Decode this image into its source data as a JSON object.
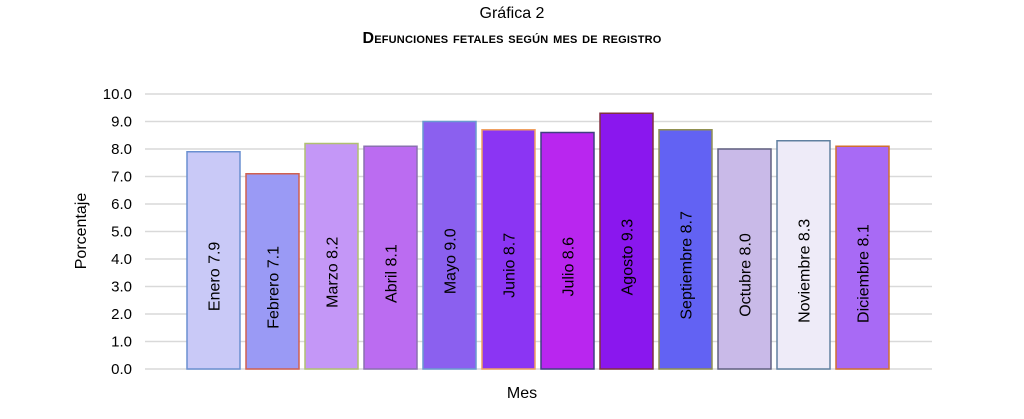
{
  "chart_data": {
    "type": "bar",
    "title": "Gráfica 2",
    "subtitle": "Defunciones fetales según mes de registro",
    "xlabel": "Mes",
    "ylabel": "Porcentaje",
    "ylim": [
      0,
      10
    ],
    "yticks": [
      "0.0",
      "1.0",
      "2.0",
      "3.0",
      "4.0",
      "5.0",
      "6.0",
      "7.0",
      "8.0",
      "9.0",
      "10.0"
    ],
    "grid": true,
    "categories": [
      "Enero",
      "Febrero",
      "Marzo",
      "Abril",
      "Mayo",
      "Junio",
      "Julio",
      "Agosto",
      "Septiembre",
      "Octubre",
      "Noviembre",
      "Diciembre"
    ],
    "values": [
      7.9,
      7.1,
      8.2,
      8.1,
      9.0,
      8.7,
      8.6,
      9.3,
      8.7,
      8.0,
      8.3,
      8.1
    ],
    "bar_labels": [
      "Enero 7.9",
      "Febrero 7.1",
      "Marzo 8.2",
      "Abril 8.1",
      "Mayo 9.0",
      "Junio 8.7",
      "Julio 8.6",
      "Agosto 9.3",
      "Septiembre 8.7",
      "Octubre 8.0",
      "Noviembre 8.3",
      "Diciembre 8.1"
    ],
    "colors": [
      "#c9c9f7",
      "#9a9af5",
      "#c497f7",
      "#bb6cf1",
      "#8b60ef",
      "#8b35f3",
      "#b926ef",
      "#8a17ee",
      "#6262f3",
      "#c9bae8",
      "#eeebf8",
      "#a86af5"
    ],
    "border_colors": [
      "#6a8fd0",
      "#d06050",
      "#b0c070",
      "#8a70b0",
      "#6a9ad0",
      "#f0a060",
      "#404080",
      "#803040",
      "#909050",
      "#606080",
      "#6080a0",
      "#d07030"
    ]
  }
}
